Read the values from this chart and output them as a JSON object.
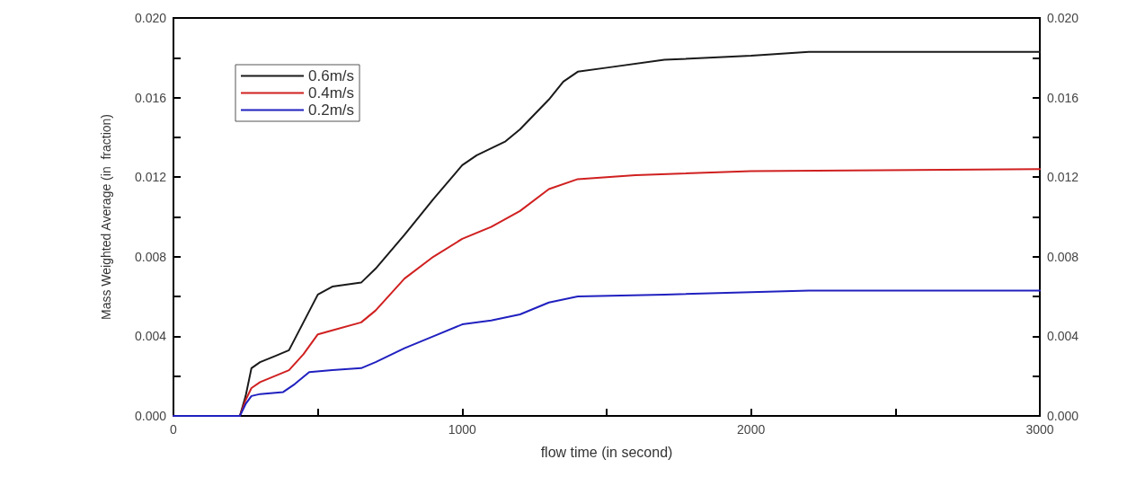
{
  "chart_data": {
    "type": "line",
    "xlabel": "flow time (in second)",
    "ylabel": "Mass Weighted Average (in  fraction)",
    "xlim": [
      0,
      3000
    ],
    "xticks": [
      0,
      {
        "value": 500,
        "label": null
      },
      1000,
      {
        "value": 1500,
        "label": null
      },
      2000,
      {
        "value": 2500,
        "label": null
      },
      3000
    ],
    "ylim": [
      0,
      0.02
    ],
    "yticks": [
      {
        "value": 0,
        "label": "0.000"
      },
      {
        "value": 0.002,
        "label": null
      },
      {
        "value": 0.004,
        "label": "0.004"
      },
      {
        "value": 0.006,
        "label": null
      },
      {
        "value": 0.008,
        "label": "0.008"
      },
      {
        "value": 0.01,
        "label": null
      },
      {
        "value": 0.012,
        "label": "0.012"
      },
      {
        "value": 0.014,
        "label": null
      },
      {
        "value": 0.016,
        "label": "0.016"
      },
      {
        "value": 0.018,
        "label": null
      },
      {
        "value": 0.02,
        "label": "0.020"
      }
    ],
    "y2lim": [
      0,
      0.02
    ],
    "y2ticks": [
      {
        "value": 0,
        "label": "0.000"
      },
      {
        "value": 0.002,
        "label": null
      },
      {
        "value": 0.004,
        "label": "0.004"
      },
      {
        "value": 0.006,
        "label": null
      },
      {
        "value": 0.008,
        "label": "0.008"
      },
      {
        "value": 0.01,
        "label": null
      },
      {
        "value": 0.012,
        "label": "0.012"
      },
      {
        "value": 0.014,
        "label": null
      },
      {
        "value": 0.016,
        "label": "0.016"
      },
      {
        "value": 0.018,
        "label": null
      },
      {
        "value": 0.02,
        "label": "0.020"
      }
    ],
    "grid": false,
    "legend": "top left",
    "marker": "none",
    "line_style": "solid",
    "series": [
      {
        "name": "0.6m/s",
        "color": "#1a1a1a",
        "x": [
          0,
          230,
          250,
          270,
          300,
          350,
          400,
          450,
          500,
          550,
          650,
          700,
          800,
          900,
          1000,
          1050,
          1150,
          1200,
          1300,
          1350,
          1400,
          1500,
          1700,
          2000,
          2200,
          3000
        ],
        "values": [
          0,
          0,
          0.001,
          0.0024,
          0.0027,
          0.003,
          0.0033,
          0.0047,
          0.0061,
          0.0065,
          0.0067,
          0.0074,
          0.0091,
          0.0109,
          0.0126,
          0.0131,
          0.0138,
          0.0144,
          0.0159,
          0.0168,
          0.0173,
          0.0175,
          0.0179,
          0.0181,
          0.0183,
          0.0183
        ]
      },
      {
        "name": "0.4m/s",
        "color": "#d02020",
        "x": [
          0,
          230,
          250,
          270,
          300,
          400,
          450,
          500,
          550,
          650,
          700,
          800,
          900,
          1000,
          1100,
          1200,
          1300,
          1400,
          1600,
          2000,
          3000
        ],
        "values": [
          0,
          0,
          0.0008,
          0.0014,
          0.0017,
          0.0023,
          0.0031,
          0.0041,
          0.0043,
          0.0047,
          0.0053,
          0.0069,
          0.008,
          0.0089,
          0.0095,
          0.0103,
          0.0114,
          0.0119,
          0.0121,
          0.0123,
          0.0124
        ]
      },
      {
        "name": "0.2m/s",
        "color": "#2020c0",
        "x": [
          0,
          230,
          250,
          270,
          300,
          380,
          420,
          470,
          550,
          650,
          700,
          800,
          900,
          1000,
          1100,
          1200,
          1300,
          1400,
          1700,
          2200,
          3000
        ],
        "values": [
          0,
          0,
          0.0006,
          0.001,
          0.0011,
          0.0012,
          0.0016,
          0.0022,
          0.0023,
          0.0024,
          0.0027,
          0.0034,
          0.004,
          0.0046,
          0.0048,
          0.0051,
          0.0057,
          0.006,
          0.0061,
          0.0063,
          0.0063
        ]
      }
    ]
  }
}
